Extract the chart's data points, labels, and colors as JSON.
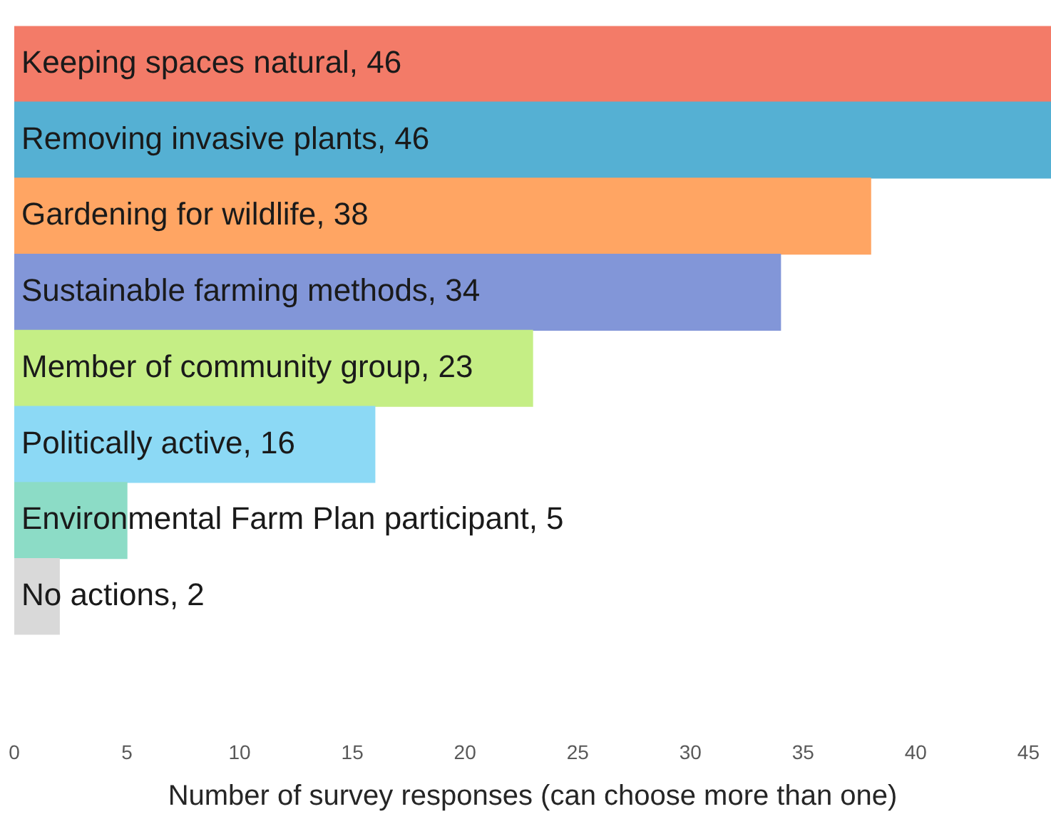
{
  "chart_data": {
    "type": "bar",
    "orientation": "horizontal",
    "categories": [
      "Keeping spaces natural, 46",
      "Removing invasive plants, 46",
      "Gardening for wildlife, 38",
      "Sustainable farming methods, 34",
      "Member of community group, 23",
      "Politically active, 16",
      "Environmental Farm Plan participant, 5",
      "No actions, 2"
    ],
    "values": [
      46,
      46,
      38,
      34,
      23,
      16,
      5,
      2
    ],
    "colors": [
      "#f37b68",
      "#55b0d3",
      "#ffa563",
      "#8296d8",
      "#c5ee85",
      "#8cd9f5",
      "#8cdcc6",
      "#d9d9d9"
    ],
    "xlabel": "Number of survey responses (can choose more than one)",
    "xlim": [
      0,
      46
    ],
    "xticks": [
      0,
      5,
      10,
      15,
      20,
      25,
      30,
      35,
      40,
      45
    ]
  }
}
